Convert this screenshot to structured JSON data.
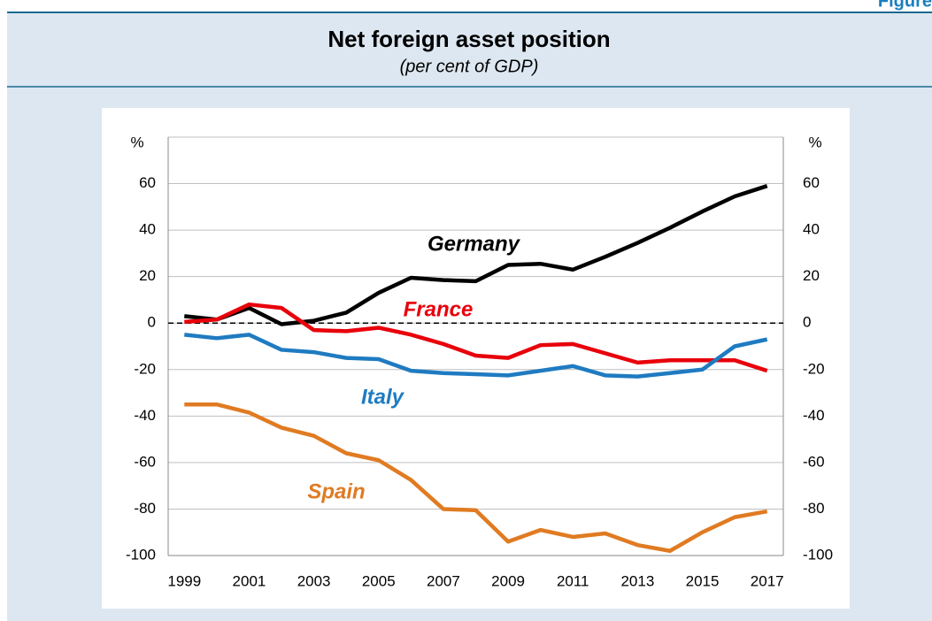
{
  "figure_label": "Figure",
  "chart_data": {
    "type": "line",
    "title": "Net foreign asset position",
    "subtitle": "(per cent of GDP)",
    "ylabel": "%",
    "y2label": "%",
    "x": [
      1999,
      2000,
      2001,
      2002,
      2003,
      2004,
      2005,
      2006,
      2007,
      2008,
      2009,
      2010,
      2011,
      2012,
      2013,
      2014,
      2015,
      2016,
      2017
    ],
    "xlim": [
      1998.5,
      2017.5
    ],
    "xticks": [
      1999,
      2001,
      2003,
      2005,
      2007,
      2009,
      2011,
      2013,
      2015,
      2017
    ],
    "ylim": [
      -100,
      80
    ],
    "yticks": [
      -100,
      -80,
      -60,
      -40,
      -20,
      0,
      20,
      40,
      60
    ],
    "y2lim": [
      -100,
      80
    ],
    "y2ticks": [
      -100,
      -80,
      -60,
      -40,
      -20,
      0,
      20,
      40,
      60
    ],
    "grid": true,
    "series": [
      {
        "name": "Germany",
        "color": "#000000",
        "values": [
          3,
          1.5,
          6.5,
          -0.5,
          1,
          4.5,
          13,
          19.5,
          18.5,
          18,
          25,
          25.5,
          23,
          28.5,
          34.5,
          41,
          48,
          54.5,
          59
        ]
      },
      {
        "name": "France",
        "color": "#e8000b",
        "values": [
          0.5,
          1.5,
          8,
          6.5,
          -3,
          -3.5,
          -2,
          -5,
          -9,
          -14,
          -15,
          -9.5,
          -9,
          -13,
          -17,
          -16,
          -16,
          -16,
          -20.5
        ]
      },
      {
        "name": "Italy",
        "color": "#1f7bc1",
        "values": [
          -5,
          -6.5,
          -5,
          -11.5,
          -12.5,
          -15,
          -15.5,
          -20.5,
          -21.5,
          -22,
          -22.5,
          -20.5,
          -18.5,
          -22.5,
          -23,
          -21.5,
          -20,
          -10,
          -7
        ]
      },
      {
        "name": "Spain",
        "color": "#e07b22",
        "values": [
          -35,
          -35,
          -38.5,
          -45,
          -48.5,
          -56,
          -59,
          -67.5,
          -80,
          -80.5,
          -94,
          -89,
          -92,
          -90.5,
          -95.5,
          -98,
          -90,
          -83.5,
          -81
        ]
      }
    ]
  }
}
